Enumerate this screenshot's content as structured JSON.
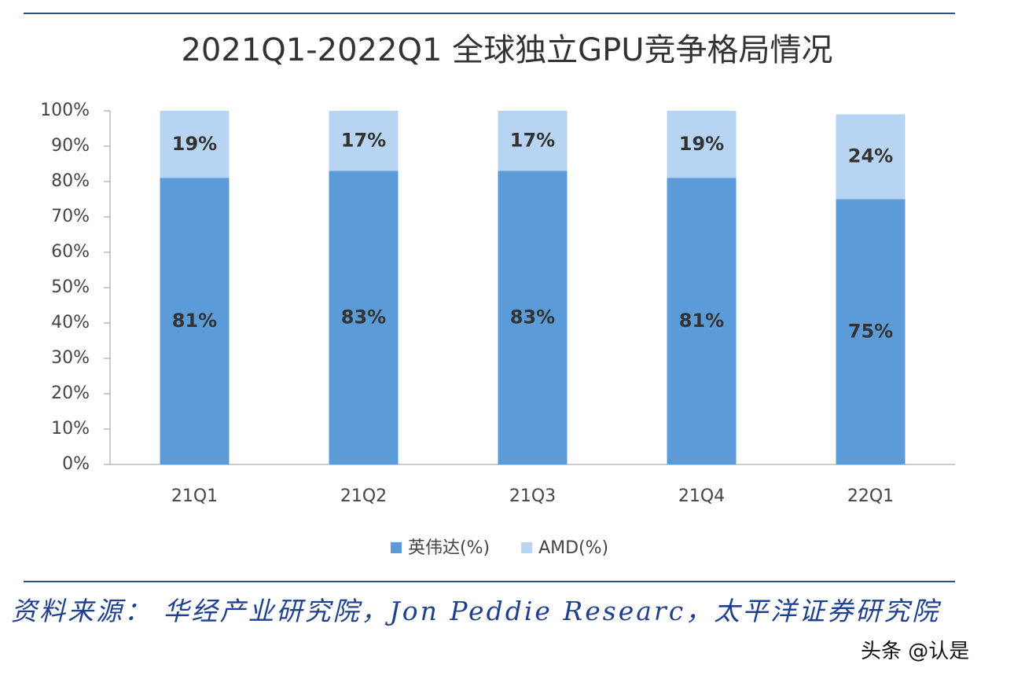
{
  "chart_data": {
    "type": "stacked_bar",
    "title": "2021Q1-2022Q1 全球独立GPU竞争格局情况",
    "categories": [
      "21Q1",
      "21Q2",
      "21Q3",
      "21Q4",
      "22Q1"
    ],
    "series": [
      {
        "name": "英伟达(%)",
        "color": "#5b9bd8",
        "values": [
          81,
          83,
          83,
          81,
          75
        ],
        "value_labels": [
          "81%",
          "83%",
          "83%",
          "81%",
          "75%"
        ]
      },
      {
        "name": "AMD(%)",
        "color": "#b7d5f2",
        "values": [
          19,
          17,
          17,
          19,
          24
        ],
        "value_labels": [
          "19%",
          "17%",
          "17%",
          "19%",
          "24%"
        ]
      }
    ],
    "ylim": [
      0,
      100
    ],
    "yticks": [
      {
        "value": 0,
        "label": "0%"
      },
      {
        "value": 10,
        "label": "10%"
      },
      {
        "value": 20,
        "label": "20%"
      },
      {
        "value": 30,
        "label": "30%"
      },
      {
        "value": 40,
        "label": "40%"
      },
      {
        "value": 50,
        "label": "50%"
      },
      {
        "value": 60,
        "label": "60%"
      },
      {
        "value": 70,
        "label": "70%"
      },
      {
        "value": 80,
        "label": "80%"
      },
      {
        "value": 90,
        "label": "90%"
      },
      {
        "value": 100,
        "label": "100%"
      }
    ],
    "grid": false,
    "legend": "bottom",
    "source": "资料来源： 华经产业研究院，Jon Peddie Researc，太平洋证券研究院",
    "watermark": "头条 @认是"
  }
}
